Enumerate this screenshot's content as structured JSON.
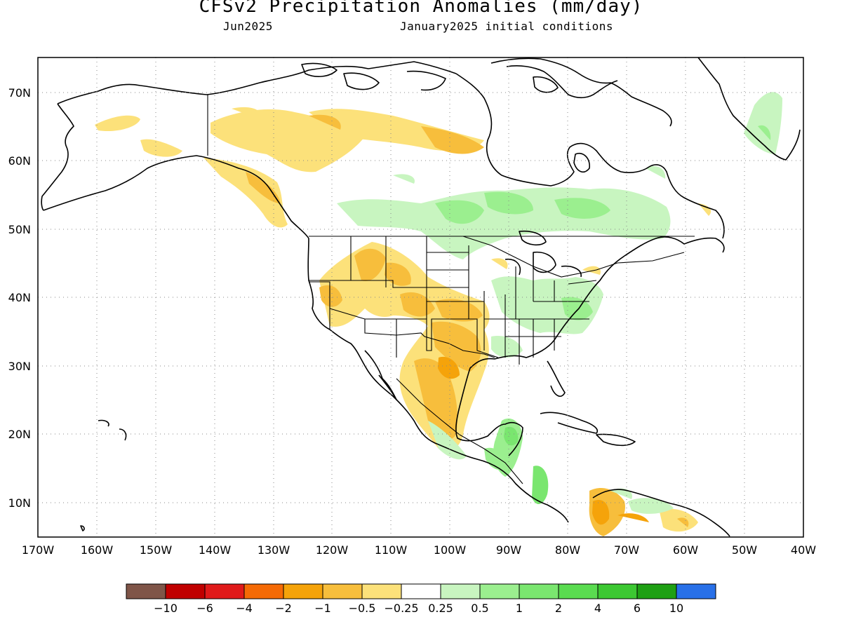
{
  "title": "CFSv2 Precipitation Anomalies (mm/day)",
  "subtitle_left": "Jun2025",
  "subtitle_right": "January2025 initial conditions",
  "map": {
    "lon_range": [
      -170,
      -40
    ],
    "lat_range": [
      5,
      75
    ],
    "lat_labels": [
      "10N",
      "20N",
      "30N",
      "40N",
      "50N",
      "60N",
      "70N"
    ],
    "lon_labels": [
      "170W",
      "160W",
      "150W",
      "140W",
      "130W",
      "120W",
      "110W",
      "100W",
      "90W",
      "80W",
      "70W",
      "60W",
      "50W",
      "40W"
    ],
    "gridlines": "dotted"
  },
  "colorbar": {
    "colors": [
      "#7f5548",
      "#c00000",
      "#e01a1a",
      "#f56a05",
      "#f5a30a",
      "#f7be3c",
      "#fce17a",
      "#ffffff",
      "#c8f5c0",
      "#9bef8f",
      "#7ae66f",
      "#5adc50",
      "#3cc832",
      "#1ea014",
      "#2870e8"
    ],
    "labels": [
      "−10",
      "−6",
      "−4",
      "−2",
      "−1",
      "−0.5",
      "−0.25",
      "0.25",
      "0.5",
      "1",
      "2",
      "4",
      "6",
      "10"
    ]
  }
}
